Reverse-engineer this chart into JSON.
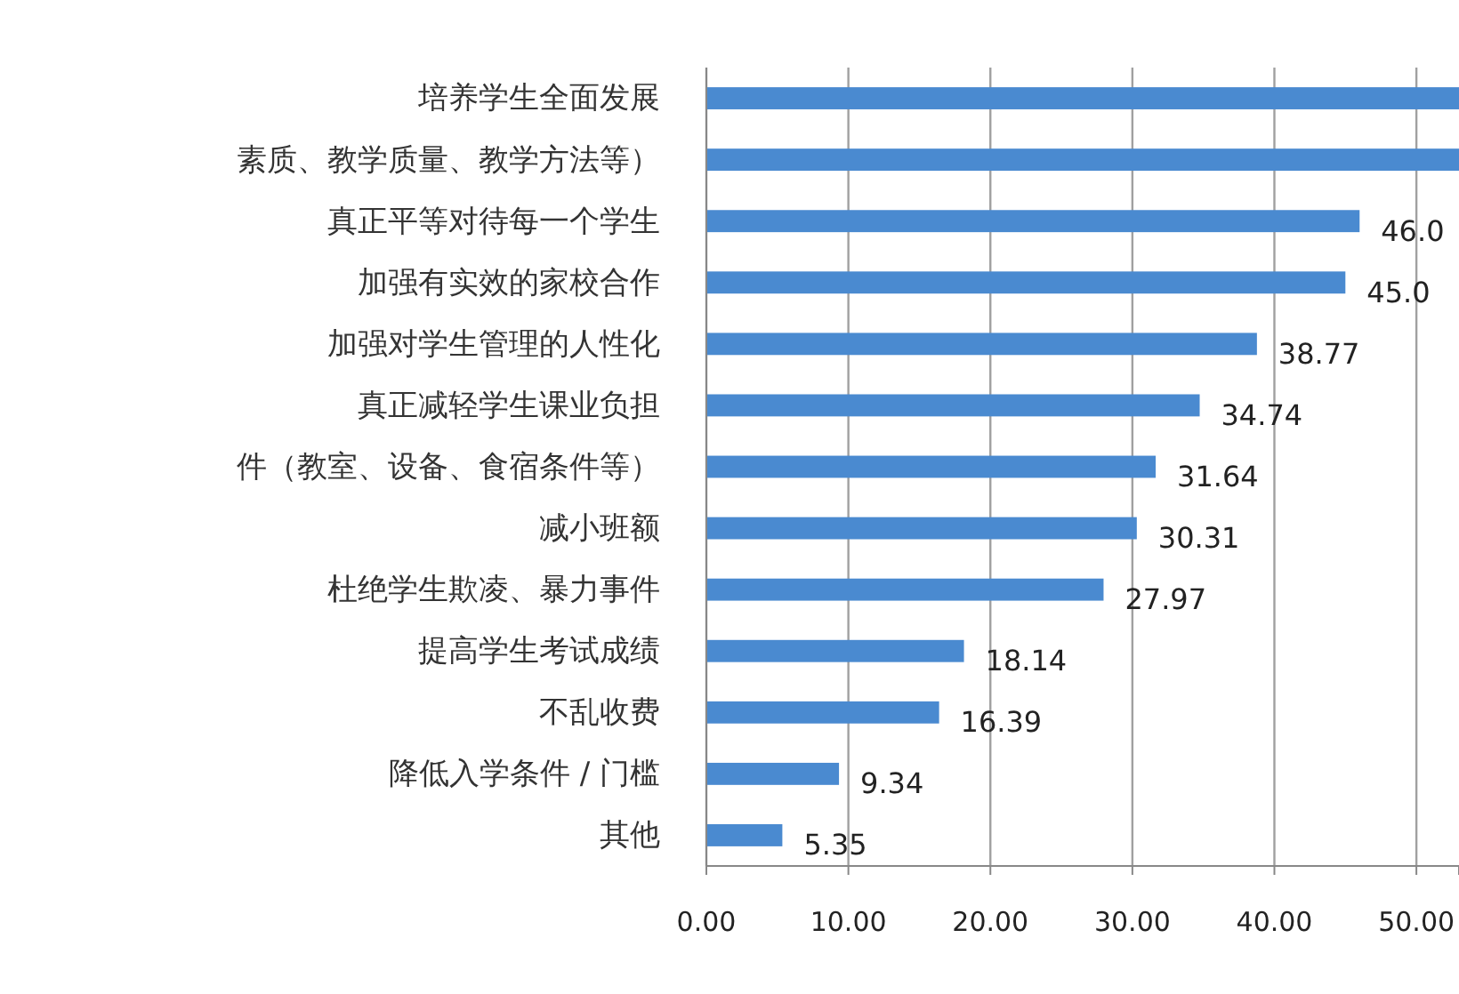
{
  "chart_data": {
    "type": "bar",
    "orientation": "horizontal",
    "categories": [
      "培养学生全面发展",
      "素质、教学质量、教学方法等）",
      "真正平等对待每一个学生",
      "加强有实效的家校合作",
      "加强对学生管理的人性化",
      "真正减轻学生课业负担",
      "件（教室、设备、食宿条件等）",
      "减小班额",
      "杜绝学生欺凌、暴力事件",
      "提高学生考试成绩",
      "不乱收费",
      "降低入学条件 / 门槛",
      "其他"
    ],
    "values": [
      53,
      53,
      46.0,
      45.0,
      38.77,
      34.74,
      31.64,
      30.31,
      27.97,
      18.14,
      16.39,
      9.34,
      5.35
    ],
    "value_labels": [
      null,
      null,
      "46.0",
      "45.0",
      "38.77",
      "34.74",
      "31.64",
      "30.31",
      "27.97",
      "18.14",
      "16.39",
      "9.34",
      "5.35"
    ],
    "color": "#4a8ad0",
    "xlim": [
      0,
      53
    ],
    "xticks": [
      {
        "value": 0,
        "label": "0.00"
      },
      {
        "value": 10,
        "label": "10.00"
      },
      {
        "value": 20,
        "label": "20.00"
      },
      {
        "value": 30,
        "label": "30.00"
      },
      {
        "value": 40,
        "label": "40.00"
      },
      {
        "value": 50,
        "label": "50.00"
      }
    ],
    "grid": "x"
  }
}
